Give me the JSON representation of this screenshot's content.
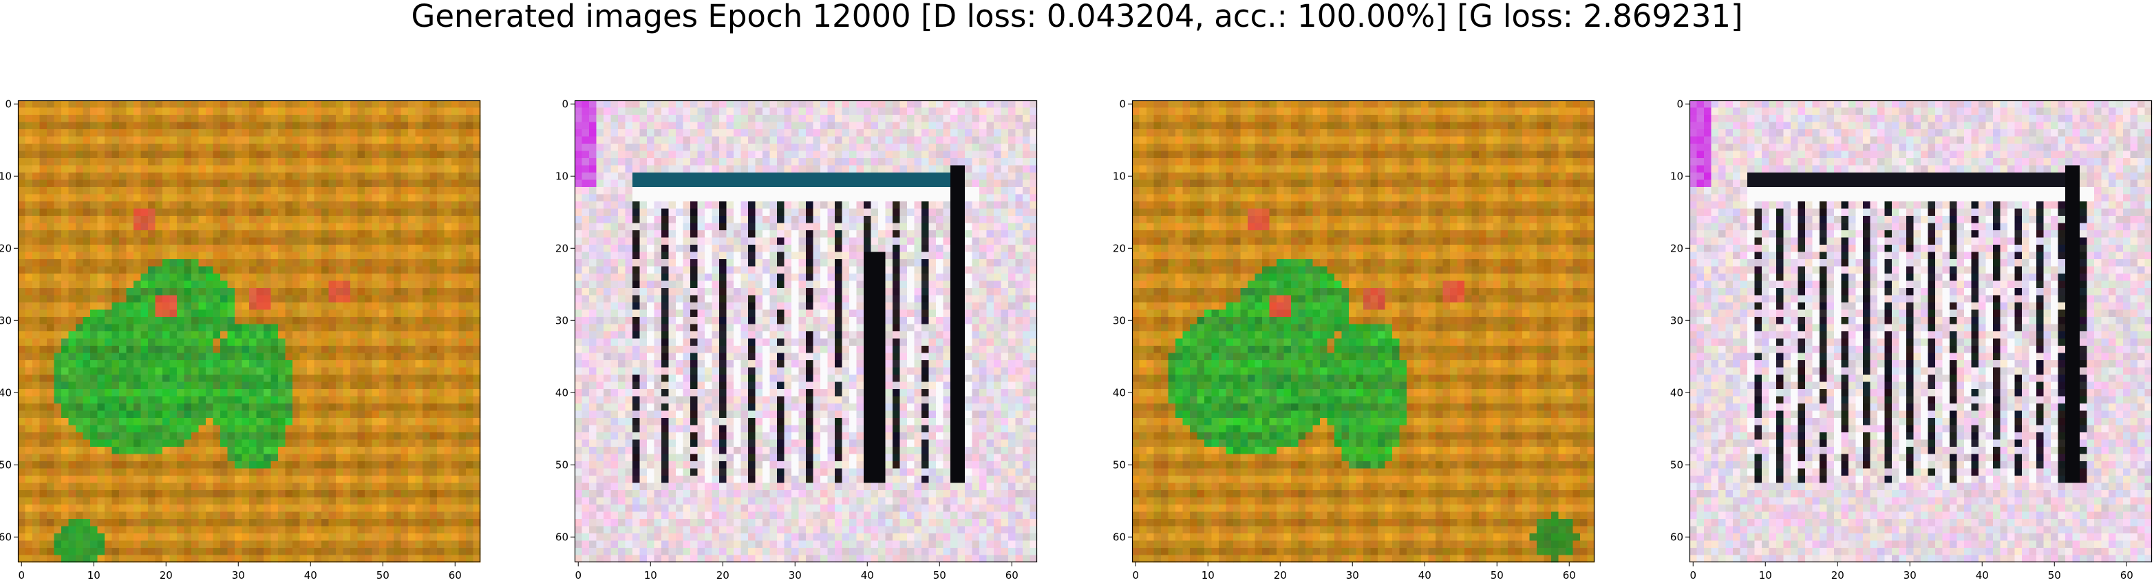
{
  "figure": {
    "title": "Generated images Epoch 12000 [D loss: 0.043204, acc.: 100.00%] [G loss: 2.869231]"
  },
  "axes_ticks": {
    "x": [
      "0",
      "10",
      "20",
      "30",
      "40",
      "50",
      "60"
    ],
    "y": [
      "0",
      "10",
      "20",
      "30",
      "40",
      "50",
      "60"
    ]
  },
  "panels": [
    {
      "name": "generated-image-1",
      "image_size": 64,
      "content": "warm orange-brown field with a large green blob and red dots"
    },
    {
      "name": "generated-image-2",
      "image_size": 64,
      "content": "light pink-white field with dark vertical bars inside a white frame"
    },
    {
      "name": "generated-image-3",
      "image_size": 64,
      "content": "warm orange-brown field with a large green blob and red dots"
    },
    {
      "name": "generated-image-4",
      "image_size": 64,
      "content": "light pink-white field with thinner dark vertical bars and a dark top band"
    }
  ],
  "colors": {
    "orange_bg": "#c8891e",
    "green_blob": "#2aa832",
    "pink_bg": "#e9d4e4",
    "dark_bar": "#0d0b12"
  }
}
